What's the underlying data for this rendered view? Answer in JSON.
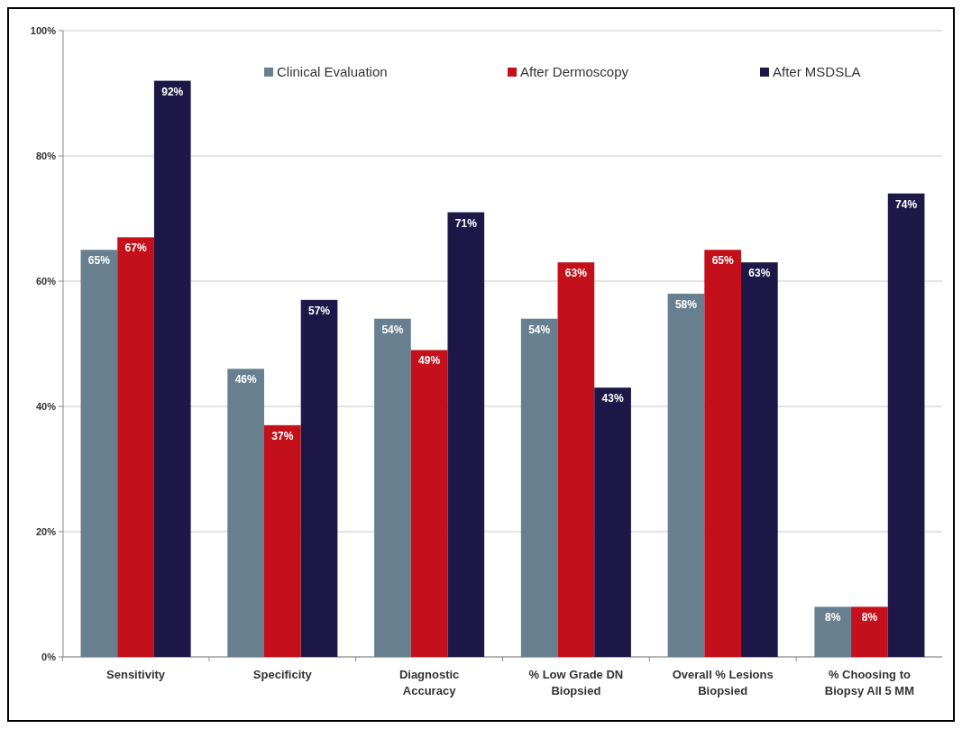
{
  "chart_data": {
    "type": "bar",
    "categories": [
      "Sensitivity",
      "Specificity",
      "Diagnostic Accuracy",
      "% Low Grade DN Biopsied",
      "Overall % Lesions Biopsied",
      "% Choosing to Biopsy All 5 MM"
    ],
    "series": [
      {
        "name": "Clinical Evaluation",
        "color": "#687f90",
        "values": [
          65,
          46,
          54,
          54,
          58,
          8
        ],
        "value_labels": [
          "65%",
          "46%",
          "54%",
          "54%",
          "58%",
          "8%"
        ]
      },
      {
        "name": "After Dermoscopy",
        "color": "#c3101a",
        "values": [
          67,
          37,
          49,
          63,
          65,
          8
        ],
        "value_labels": [
          "67%",
          "37%",
          "49%",
          "63%",
          "65%",
          "8%"
        ]
      },
      {
        "name": "After MSDSLA",
        "color": "#1e1848",
        "values": [
          92,
          57,
          71,
          43,
          63,
          74
        ],
        "value_labels": [
          "92%",
          "57%",
          "71%",
          "43%",
          "63%",
          "74%"
        ]
      }
    ],
    "ylim": [
      0,
      100
    ],
    "yticks": [
      {
        "value": 0,
        "label": "0%"
      },
      {
        "value": 20,
        "label": "20%"
      },
      {
        "value": 40,
        "label": "40%"
      },
      {
        "value": 60,
        "label": "60%"
      },
      {
        "value": 80,
        "label": "80%"
      },
      {
        "value": 100,
        "label": "100%"
      }
    ],
    "grid": "y",
    "legend": "top"
  }
}
